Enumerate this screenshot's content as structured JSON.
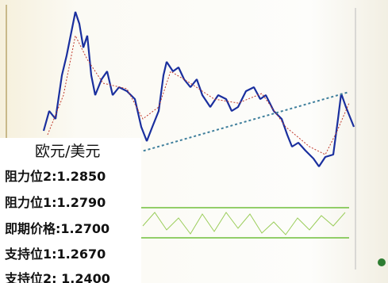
{
  "panel": {
    "title": "欧元/美元",
    "levels": [
      "阻力位2:1.2850",
      "阻力位1:1.2790",
      "即期价格:1.2700",
      "支持位1:1.2670",
      "支持位2: 1.2400"
    ]
  }
}
